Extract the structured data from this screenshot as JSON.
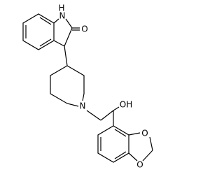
{
  "atoms": {
    "nh_h": "H",
    "nh_n": "N",
    "carbonyl_o": "O",
    "piperidine_n": "N",
    "hydroxyl": "OH",
    "dioxole_o1": "O",
    "dioxole_o2": "O"
  }
}
